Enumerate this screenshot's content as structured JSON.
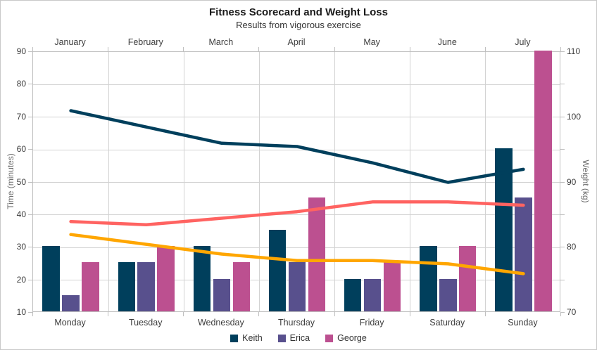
{
  "header": {
    "title": "Fitness Scorecard and Weight Loss",
    "subtitle": "Results from vigorous exercise"
  },
  "chart_data": {
    "type": "bar+line combo, dual x-axis, dual y-axis",
    "categories_bottom": [
      "Monday",
      "Tuesday",
      "Wednesday",
      "Thursday",
      "Friday",
      "Saturday",
      "Sunday"
    ],
    "categories_top": [
      "January",
      "February",
      "March",
      "April",
      "May",
      "June",
      "July"
    ],
    "left_axis": {
      "label": "Time (minutes)",
      "min": 10,
      "max": 90,
      "tick_labels": [
        10,
        20,
        30,
        40,
        50,
        60,
        70,
        80,
        90
      ]
    },
    "right_axis": {
      "label": "Weight (kg)",
      "min": 70,
      "max": 110,
      "tick_labels": [
        70,
        80,
        90,
        100,
        110
      ],
      "minor_tick_step": 5
    },
    "bar_series": [
      {
        "name": "Keith",
        "color": "#003f5c",
        "axis": "left",
        "values": [
          30,
          25,
          30,
          35,
          20,
          30,
          60
        ]
      },
      {
        "name": "Erica",
        "color": "#58508d",
        "axis": "left",
        "values": [
          15,
          25,
          20,
          25,
          20,
          20,
          45
        ]
      },
      {
        "name": "George",
        "color": "#bc5090",
        "axis": "left",
        "values": [
          25,
          30,
          25,
          45,
          25,
          30,
          90
        ]
      }
    ],
    "line_series": [
      {
        "id": "weight-line-navy",
        "color": "#003f5c",
        "axis": "right",
        "values": [
          101,
          98.5,
          96,
          95.5,
          93,
          90,
          92
        ]
      },
      {
        "id": "weight-line-red",
        "color": "#ff6361",
        "axis": "right",
        "values": [
          84,
          83.5,
          84.5,
          85.5,
          87,
          87,
          86.5
        ]
      },
      {
        "id": "weight-line-orange",
        "color": "#ffa600",
        "axis": "right",
        "values": [
          82,
          80.5,
          79,
          78,
          78,
          77.5,
          76
        ]
      }
    ],
    "legend": [
      "Keith",
      "Erica",
      "George"
    ],
    "legend_position": "bottom",
    "grid": true
  },
  "colors": {
    "grid": "#d2d2d2",
    "axis_frame": "#bfbfbf",
    "tick_label": "#3d3d3d",
    "axis_title": "#6e6e6e"
  }
}
